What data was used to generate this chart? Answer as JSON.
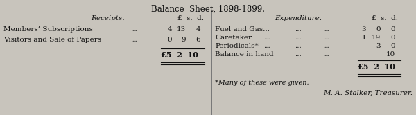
{
  "title": "Balance  Sheet, 1898-1899.",
  "receipts_header": "Receipts.",
  "expenditure_header": "Expenditure.",
  "lsd_left": "£  s.  d.",
  "lsd_right": "£  s.  d.",
  "receipt_rows": [
    [
      "Members’ Subscriptions",
      "...",
      "4",
      "13",
      "4"
    ],
    [
      "Visitors and Sale of Papers",
      "...",
      "0",
      "9",
      "6"
    ]
  ],
  "expenditure_rows": [
    [
      "Fuel and Gas...",
      "...",
      "...",
      "3",
      "0",
      "0"
    ],
    [
      "Caretaker",
      "...",
      "...",
      "...",
      "1",
      "19",
      "0"
    ],
    [
      "Periodicals*",
      "...",
      "...",
      "...",
      "",
      "3",
      "0"
    ],
    [
      "Balance in hand",
      "...",
      "...",
      "",
      "",
      "",
      "10"
    ]
  ],
  "total_left": "£5  2  10",
  "total_right": "£5  2  10",
  "footnote": "*Many of these were given.",
  "treasurer": "M. A. Stalker, Treasurer.",
  "bg_color": "#c8c4bc",
  "text_color": "#111111",
  "line_color": "#111111"
}
